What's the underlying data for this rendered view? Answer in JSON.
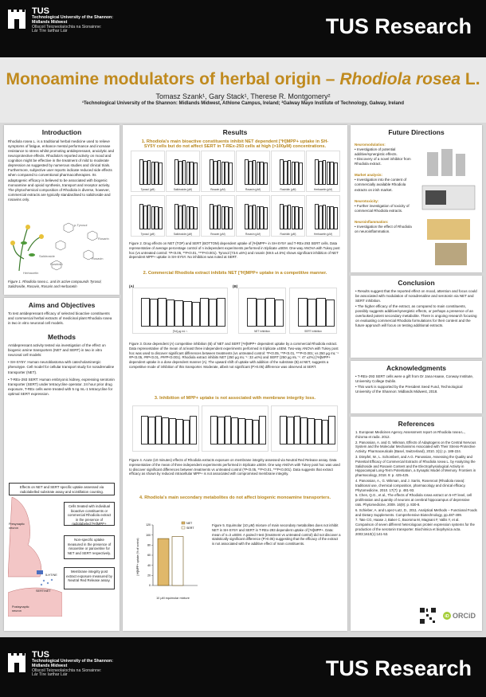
{
  "header": {
    "logo_name": "TUS",
    "logo_line1": "Technological University of the Shannon:",
    "logo_line2": "Midlands Midwest",
    "logo_irish1": "Ollscoil Teicneolaíochta na Sionainne:",
    "logo_irish2": "Lár Tíre Iarthar Láir",
    "title": "TUS Research"
  },
  "title": {
    "main": "Monoamine modulators of herbal origin – ",
    "italic": "Rhodiola rosea",
    "tail": " L.",
    "authors": "Tomasz Szank¹, Gary Stack¹, Therese R. Montgomery²",
    "affiliations": "¹Technological University of the Shannon: Midlands Midwest, Athlone Campus, Ireland; ²Galway Mayo Institute of Technology, Galway, Ireland"
  },
  "intro": {
    "title": "Introduction",
    "text": "Rhodiola rosea L. is a traditional herbal medicine used to relieve symptoms of fatigue, enhance mental performance and increase resistance to stress whilst promoting antidepressant, anxiolytic and neuroprotective effects. Rhodiola's reported activity on mood and cognition might be effective in the treatment of mild to moderate depression as suggested by numerous studies and clinical trials. Furthermore, subjective user reports indicate reduced side effects when compared to conventional pharmacotherapies. Its adaptogenic efficacy is believed to be associated with biogenic monoamine and opioid synthesis, transport and receptor activity. The phytochemical composition of Rhodiola is diverse, however, commercial extracts are typically standardised to salidroside and rosavins only.",
    "labels": [
      "p-Tyrosol",
      "Rosarin",
      "Salidroside",
      "Rosavin",
      "Herbacetin",
      "Rosiridin"
    ],
    "caption": "Figure 1. Rhodiola rosea L. and its active compounds Tyrosol, Salidroside, Rosavin, Rosarin and Herbacetin"
  },
  "aims": {
    "title": "Aims and Objectives",
    "text": "To test antidepressant efficacy of selected bioactive constituents and commercial herbal extracts of medicinal plant Rhodiola rosea in two in vitro neuronal cell models."
  },
  "methods": {
    "title": "Methods",
    "intro": "Antidepressant activity tested via investigation of the effect on biogenic amine transporters (NET and SERT) in two in vitro neuronal cell models:",
    "b1": "• SH-SY5Y: Human neuroblastoma with catecholaminergic phenotype. Cell model for cellular transport study for noradrenaline transporter (NET).",
    "b2": "• T-REx-293 SERT: Human embryonic kidney, expressing serotonin transporter (SERT) under tetracycline operator. 24 hour prior drug exposure, T-REx cells were treated with 5 ng mL-1 tetracycline for optimal SERT expression.",
    "box1": "Effects on NET and SERT specific uptake assessed via radiolabelled substrate assay and scintillation counting.",
    "box2": "Cells treated with individual bioactive constituents or commercial Rhodiola extract in the presence of radiolabeled [³H]MPP+",
    "box3": "Non-specific uptake measured in the presence of nisoxetine or paroxetine for NET and SERT respectively.",
    "box4": "Membrane integrity post extract exposure measured by Neutral Red Release assay.",
    "lbl_pre": "Presynaptic neuron",
    "lbl_post": "Postsynaptic neuron",
    "lbl_net": "SERT/NET",
    "lbl_5ht": "5-HT/NE"
  },
  "results": {
    "title": "Results",
    "s1": "1. Rhodiola's main bioactive constituents inhibit NET dependent [³H]MPP+ uptake in SH-SY5Y cells but do not affect SERT in T-REx-293 cells at high (>100μM) concentrations.",
    "cap2": "Figure 2. Drug effects on NET (TOP) and SERT (BOTTOM) dependent uptake of [³H]MPP+ in SH-SY5Y and T-REx-293 SERT cells. Data representative of average percentage control of n independent experiments performed in triplicate ±SEM. One-way ANOVA with Tukey post hoc (vs untreated control: *P<0.05, **P<0.01, ***P<0.001). Tyrosol (73.6 ±5%) and rosarin (69.5 ±4.5%) shows significant inhibition of NET dependent MPP+ uptake in SH-SY5Y. No inhibition was noted at SERT.",
    "s2": "2. Commercial Rhodiola extract inhibits NET [³H]MPP+ uptake in a competitive manner.",
    "cap3": "Figure 3. Dose dependent (A) competitive inhibition (B) of NET and SERT [³H]MPP+ dependent uptake by a commercial Rhodiola extract. Data representative of the mean of at least three independent experiments performed in triplicate ±SEM. Two-way ANOVA with Tukey post hoc was used to discover significant differences between treatments (vs untreated control: *P<0.05, **P<0.01, ***P<0.001; vs 250 μg mL⁻¹ #P<0.05, ##P<0.01, ###P<0.001). Rhodiola extract inhibits NET (250 μg mL⁻¹: 33 ±4%) and SERT (250 μg mL⁻¹: 47 ±2%) [³H]MPP+ dependent uptake in a dose dependent manner (A). The upward shift of uptake with addition of the substrate (B) at NET, suggests a competitive mode of inhibition of this transporter. Moderate, albeit not significant (P>0.05) difference was observed at SERT.",
    "s3": "3. Inhibition of MPP+ uptake is not associated with membrane integrity loss.",
    "cap4": "Figure 4. Acute (10 minutes) effects of Rhodiola extracts exposure on membrane integrity assessed via Neutral Red Release assay. Data representative of the mean of three independent experiments performed in triplicate ±SEM. One way ANOVA with Tukey post hoc was used to discover significant differences between treatments vs untreated control (*P<0.05, **P<0.01, ***P<0.001). Data suggests that extract efficacy as shown by reduced intracellular MPP+ is not associated with compromised membrane integrity.",
    "s4": "4. Rhodiola's main secondary metabolites do not affect biogenic monoamine transporters.",
    "cap5": "Figure 5. Equimolar (10 μM) mixture of main secondary metabolites does not inhibit NET in SH-SY5Y and SERT in T-REx-293 dependent uptake of [³H]MPP+. Data: mean of n=3 ±SEM. A paired t-test (treatment vs untreated control) did not discover a statistically significant difference (P>0.05) suggesting that the efficacy of the extract is not associated with the additive effect of main constituents.",
    "fig5_xlabel": "10 μM equimolar mixture",
    "fig5_ylabel": "[³H]MPP+ uptake (% of control)",
    "legend_net": "NET",
    "legend_sert": "SERT",
    "figA": "(A)",
    "figB": "(B)",
    "xlab3": "[Tot] μg mL⁻¹",
    "ylab": "[³H]MPP+ uptake (% of control)",
    "small_titles": [
      "Tyrosol (μM)",
      "Salidroside (μM)",
      "Rosarin (μM)",
      "Rosavin (μM)",
      "Rosiridin (μM)",
      "Herbacetin (μM)"
    ],
    "net_label": "NET inhibition",
    "sert_label": "SERT inhibition"
  },
  "future": {
    "title": "Future Directions",
    "h1": "Neuromodulation:",
    "b1": "• Investigation of potential additive/synergistic effects.",
    "b2": "• Discovery of a novel inhibitor from Rhodiola extract.",
    "h2": "Market analysis:",
    "b3": "• Investigation into the content of commercially available Rhodiola extracts on irish market.",
    "h3": "Neurotoxicity:",
    "b4": "• Further investigation of toxicity of commercial Rhodiola extracts.",
    "h4": "Neuroinflammation:",
    "b5": "• Investigation the effect of Rhodiola on neuroinflammation."
  },
  "conclusion": {
    "title": "Conclusion",
    "b1": "• Results suggest that the reported effect on mood, attention and focus could be associated with modulation of noradrenaline and serotonin via NET and SERT inhibition.",
    "b2": "• The higher efficacy of the extract, as compared to main constituents, possibly suggests additive/synergistic effects, or perhaps a presence of an overlooked potent secondary metabolite. There is ongoing research focusing on evaluating commercial Rhodiola formulations for their content and the future approach will focus on testing additional extracts."
  },
  "ack": {
    "title": "Acknowledgments",
    "b1": "• T-REx-293 SERT cells were a gift from Dr Jana Haase, Conway Institute, University College Dublin.",
    "b2": "• This work is supported by the President Seed Fund, Technological University of the Shannon: Midlands Midwest, 2018."
  },
  "refs": {
    "title": "References",
    "items": [
      "1. European Medicines Agency Assessment report on Rhodiola rosea L., rhizoma et radix. 2012.",
      "2. Panossian, A. and G. Wikman, Effects of Adaptogens on the Central Nervous System and the Molecular Mechanisms Associated with Their Stress-Protective Activity. Pharmaceuticals (Basel, Switzerland), 2010. 3(1): p. 188-224.",
      "3. Dimpfel, W., L. Schombert, and A.G. Panossian, Assessing the Quality and Potential Efficacy of Commercial Extracts of Rhodiola rosea L. by Analyzing the Salidroside and Rosavin Content and the Electrophysiological Activity in Hippocampal Long-Term Potentiation, a Synaptic Model of Memory. Frontiers in pharmacology, 2018. 9: p. 425-425.",
      "4. Panossian, A., G. Wikman, and J. Sarris, Rosenroot (Rhodiola rosea): traditional use, chemical composition, pharmacology and clinical efficacy. Phytomedicine, 2010. 17(7): p. 481-93.",
      "5. Chen, Q.G., et al., The effects of Rhodiola rosea extract on 5-HT level, cell proliferation and quantity of neurons at cerebral hippocampus of depressive rats. Phytomedicine, 2009. 16(9): p. 830-8.",
      "6. Schieber, A. and Lopez-Lutz, D., 2011. Analytical Methods – Functional Foods and Dietary Supplements. Comprehensive Biotechnology, pp.487-499.",
      "7. Tate CG, Haase J, Baker C, Boorsma M, Magnani F, Vallis Y, et al. Comparison of seven different heterologous protein expression systems for the production of the serotonin transporter. Biochimica et biophysica acta. 2003;1610(1):141-53."
    ],
    "orcid": "ORCiD"
  },
  "chart_data": [
    {
      "type": "bar",
      "title": "Figure 5",
      "categories": [
        "NET",
        "SERT"
      ],
      "values": [
        93,
        97
      ],
      "ylim": [
        0,
        120
      ],
      "ylabel": "[³H]MPP+ uptake (% of control)",
      "xlabel": "10 μM equimolar mixture"
    }
  ],
  "colors": {
    "gold": "#c08a1e",
    "black": "#0b0b0b",
    "bar_fill": "#e0b86a"
  }
}
